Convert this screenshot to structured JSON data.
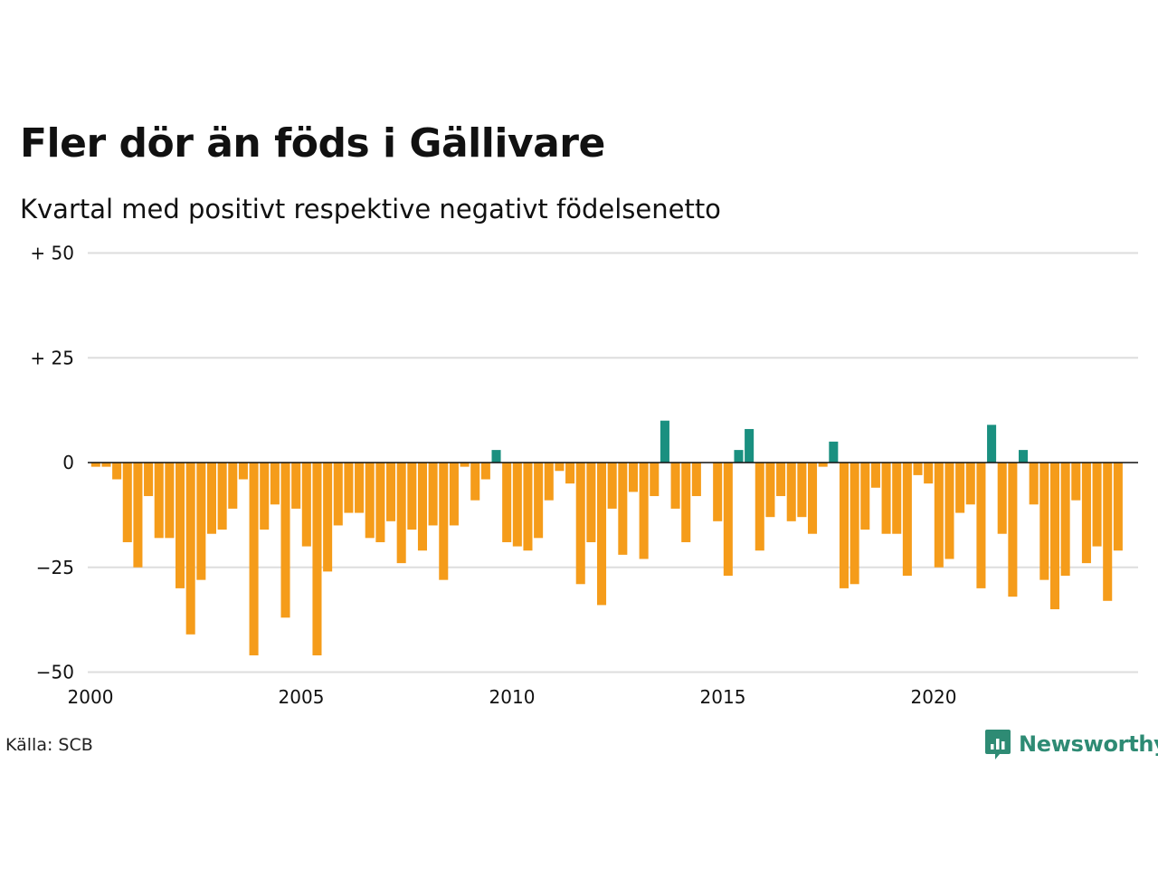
{
  "title": "Fler dör än föds i Gällivare",
  "subtitle": "Kvartal med positivt respektive negativt födelsenetto",
  "source": "Källa: SCB",
  "brand": "Newsworthy",
  "icons": {
    "brand": "newsworthy-logo-icon"
  },
  "colors": {
    "positive": "#1a9080",
    "negative": "#f59c1a",
    "grid": "#dddddd",
    "zero_line": "#111111",
    "brand": "#2e8b74"
  },
  "chart_data": {
    "type": "bar",
    "title": "Fler dör än föds i Gällivare",
    "subtitle": "Kvartal med positivt respektive negativt födelsenetto",
    "xlabel": "",
    "ylabel": "",
    "ylim": [
      -50,
      50
    ],
    "y_ticks": [
      {
        "value": 50,
        "label": "+ 50"
      },
      {
        "value": 25,
        "label": "+ 25"
      },
      {
        "value": 0,
        "label": "0"
      },
      {
        "value": -25,
        "label": "−25"
      },
      {
        "value": -50,
        "label": "−50"
      }
    ],
    "xlim": [
      2000,
      2024.75
    ],
    "x_ticks": [
      2000,
      2005,
      2010,
      2015,
      2020
    ],
    "grid": true,
    "x_start": "2000 Q1",
    "period": "quarter",
    "values": [
      -1,
      -1,
      -4,
      -19,
      -25,
      -8,
      -18,
      -18,
      -30,
      -41,
      -28,
      -17,
      -16,
      -11,
      -4,
      -46,
      -16,
      -10,
      -37,
      -11,
      -20,
      -46,
      -26,
      -15,
      -12,
      -12,
      -18,
      -19,
      -14,
      -24,
      -16,
      -21,
      -15,
      -28,
      -15,
      -1,
      -9,
      -4,
      3,
      -19,
      -20,
      -21,
      -18,
      -9,
      -2,
      -5,
      -29,
      -19,
      -34,
      -11,
      -22,
      -7,
      -23,
      -8,
      10,
      -11,
      -19,
      -8,
      0,
      -14,
      -27,
      3,
      8,
      -21,
      -13,
      -8,
      -14,
      -13,
      -17,
      -1,
      5,
      -30,
      -29,
      -16,
      -6,
      -17,
      -17,
      -27,
      -3,
      -5,
      -25,
      -23,
      -12,
      -10,
      -30,
      9,
      -17,
      -32,
      3,
      -10,
      -28,
      -35,
      -27,
      -9,
      -24,
      -20,
      -33,
      -21
    ]
  }
}
